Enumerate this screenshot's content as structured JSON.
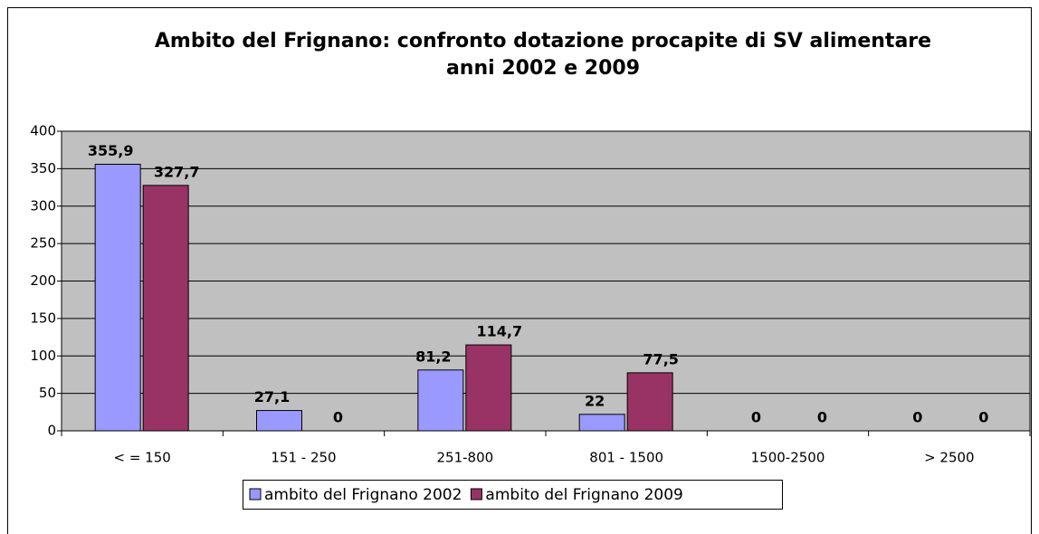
{
  "chart_data": {
    "type": "bar",
    "title": [
      "Ambito del Frignano: confronto dotazione procapite di SV alimentare",
      "anni 2002 e 2009"
    ],
    "categories": [
      "< = 150",
      "151 - 250",
      "251-800",
      "801 - 1500",
      "1500-2500",
      "> 2500"
    ],
    "series": [
      {
        "name": "ambito del Frignano 2002",
        "color": "#9999ff",
        "values": [
          355.9,
          27.1,
          81.2,
          22,
          0,
          0
        ],
        "value_labels": [
          "355,9",
          "27,1",
          "81,2",
          "22",
          "0",
          "0"
        ]
      },
      {
        "name": "ambito del Frignano 2009",
        "color": "#993366",
        "values": [
          327.7,
          0,
          114.7,
          77.5,
          0,
          0
        ],
        "value_labels": [
          "327,7",
          "0",
          "114,7",
          "77,5",
          "0",
          "0"
        ]
      }
    ],
    "ylim": [
      0,
      400
    ],
    "yticks": [
      0,
      50,
      100,
      150,
      200,
      250,
      300,
      350,
      400
    ],
    "grid": true,
    "legend": "bottom",
    "plot_background": "#c0c0c0"
  }
}
